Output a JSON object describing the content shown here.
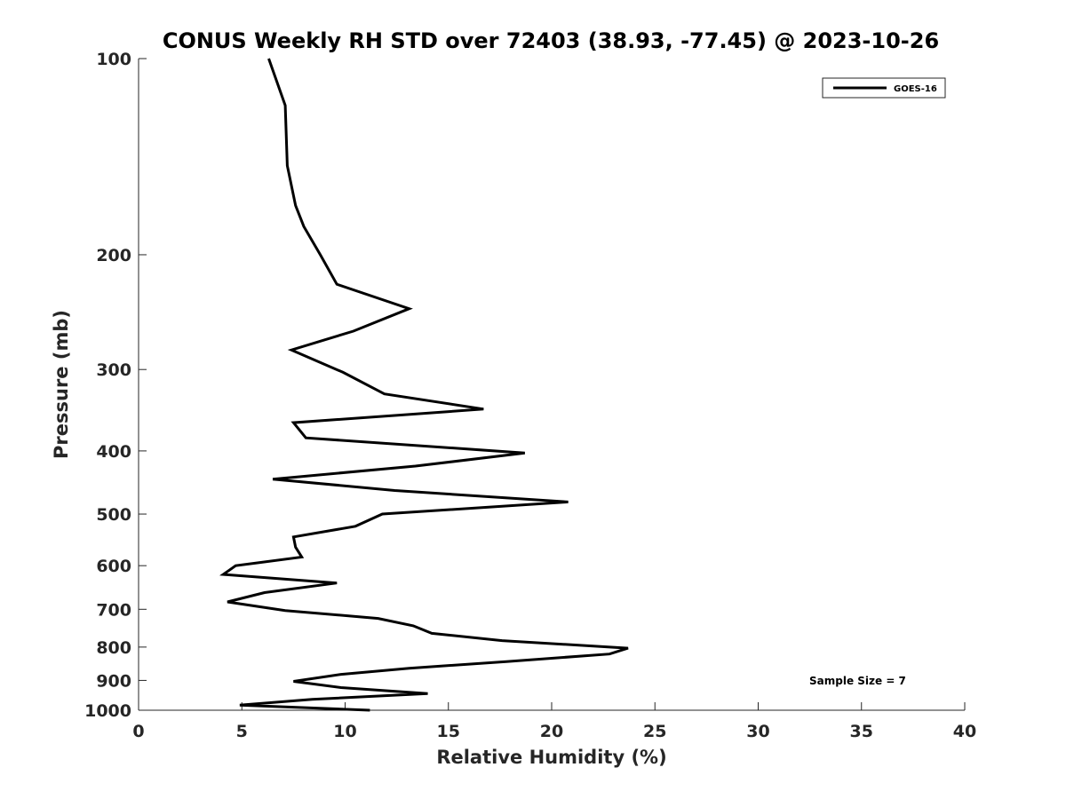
{
  "chart_data": {
    "type": "line",
    "title": "CONUS Weekly RH STD over 72403 (38.93, -77.45) @ 2023-10-26",
    "xlabel": "Relative Humidity (%)",
    "ylabel": "Pressure (mb)",
    "xlim": [
      0,
      40
    ],
    "ylim": [
      100,
      1000
    ],
    "y_scale": "log",
    "y_reversed": true,
    "x_ticks": [
      0,
      5,
      10,
      15,
      20,
      25,
      30,
      35,
      40
    ],
    "y_ticks": [
      100,
      200,
      300,
      400,
      500,
      600,
      700,
      800,
      900,
      1000
    ],
    "grid": false,
    "legend_position": "top-right",
    "annotation": "Sample Size = 7",
    "series": [
      {
        "name": "GOES-16",
        "color": "#000000",
        "points": [
          [
            6.3,
            100
          ],
          [
            7.1,
            118
          ],
          [
            7.2,
            146
          ],
          [
            7.6,
            168
          ],
          [
            8.0,
            181
          ],
          [
            8.8,
            200
          ],
          [
            9.6,
            222
          ],
          [
            13.1,
            242
          ],
          [
            10.4,
            262
          ],
          [
            7.4,
            280
          ],
          [
            9.9,
            303
          ],
          [
            11.9,
            327
          ],
          [
            16.7,
            345
          ],
          [
            7.5,
            362
          ],
          [
            8.1,
            382
          ],
          [
            18.7,
            403
          ],
          [
            13.4,
            422
          ],
          [
            6.5,
            442
          ],
          [
            12.4,
            460
          ],
          [
            20.8,
            479
          ],
          [
            11.8,
            500
          ],
          [
            10.5,
            522
          ],
          [
            7.5,
            542
          ],
          [
            7.6,
            562
          ],
          [
            7.9,
            582
          ],
          [
            4.7,
            600
          ],
          [
            4.1,
            619
          ],
          [
            9.6,
            638
          ],
          [
            6.1,
            660
          ],
          [
            4.3,
            682
          ],
          [
            7.1,
            703
          ],
          [
            11.6,
            723
          ],
          [
            13.3,
            742
          ],
          [
            14.2,
            762
          ],
          [
            17.6,
            782
          ],
          [
            23.7,
            803
          ],
          [
            22.8,
            820
          ],
          [
            17.8,
            842
          ],
          [
            13.1,
            862
          ],
          [
            9.8,
            881
          ],
          [
            7.5,
            903
          ],
          [
            9.8,
            923
          ],
          [
            14.0,
            943
          ],
          [
            8.4,
            962
          ],
          [
            4.9,
            982
          ],
          [
            11.2,
            1000
          ]
        ]
      }
    ]
  }
}
